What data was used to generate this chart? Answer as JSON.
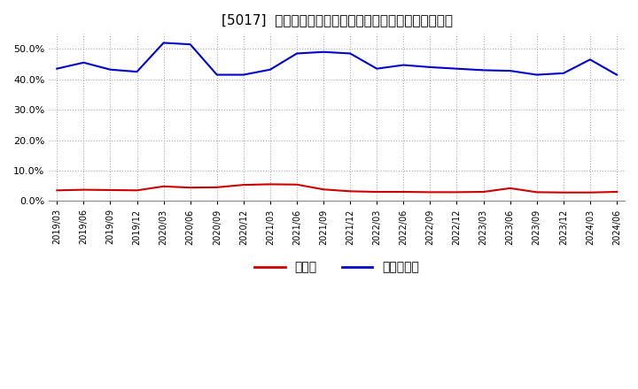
{
  "title": "[5017]  現预金、有利子負債の総資産に対する比率の推移",
  "x_labels": [
    "2019/03",
    "2019/06",
    "2019/09",
    "2019/12",
    "2020/03",
    "2020/06",
    "2020/09",
    "2020/12",
    "2021/03",
    "2021/06",
    "2021/09",
    "2021/12",
    "2022/03",
    "2022/06",
    "2022/09",
    "2022/12",
    "2023/03",
    "2023/06",
    "2023/09",
    "2023/12",
    "2024/03",
    "2024/06"
  ],
  "cash": [
    3.5,
    3.7,
    3.6,
    3.5,
    4.8,
    4.4,
    4.5,
    5.3,
    5.5,
    5.4,
    3.8,
    3.2,
    3.0,
    3.0,
    2.9,
    2.9,
    3.0,
    4.2,
    2.9,
    2.8,
    2.8,
    3.0
  ],
  "debt": [
    43.5,
    45.5,
    43.2,
    42.5,
    52.0,
    51.5,
    41.5,
    41.5,
    43.2,
    48.5,
    49.0,
    48.5,
    43.5,
    44.7,
    44.0,
    43.5,
    43.0,
    42.8,
    41.5,
    42.0,
    46.5,
    41.5
  ],
  "cash_color": "#cc0000",
  "debt_color": "#0000cc",
  "background_color": "#ffffff",
  "plot_bg_color": "#ffffff",
  "grid_color": "#aaaaaa",
  "legend_cash": "現预金",
  "legend_debt": "有利子負債",
  "ylim": [
    0,
    55
  ],
  "yticks": [
    0,
    10,
    20,
    30,
    40,
    50
  ]
}
